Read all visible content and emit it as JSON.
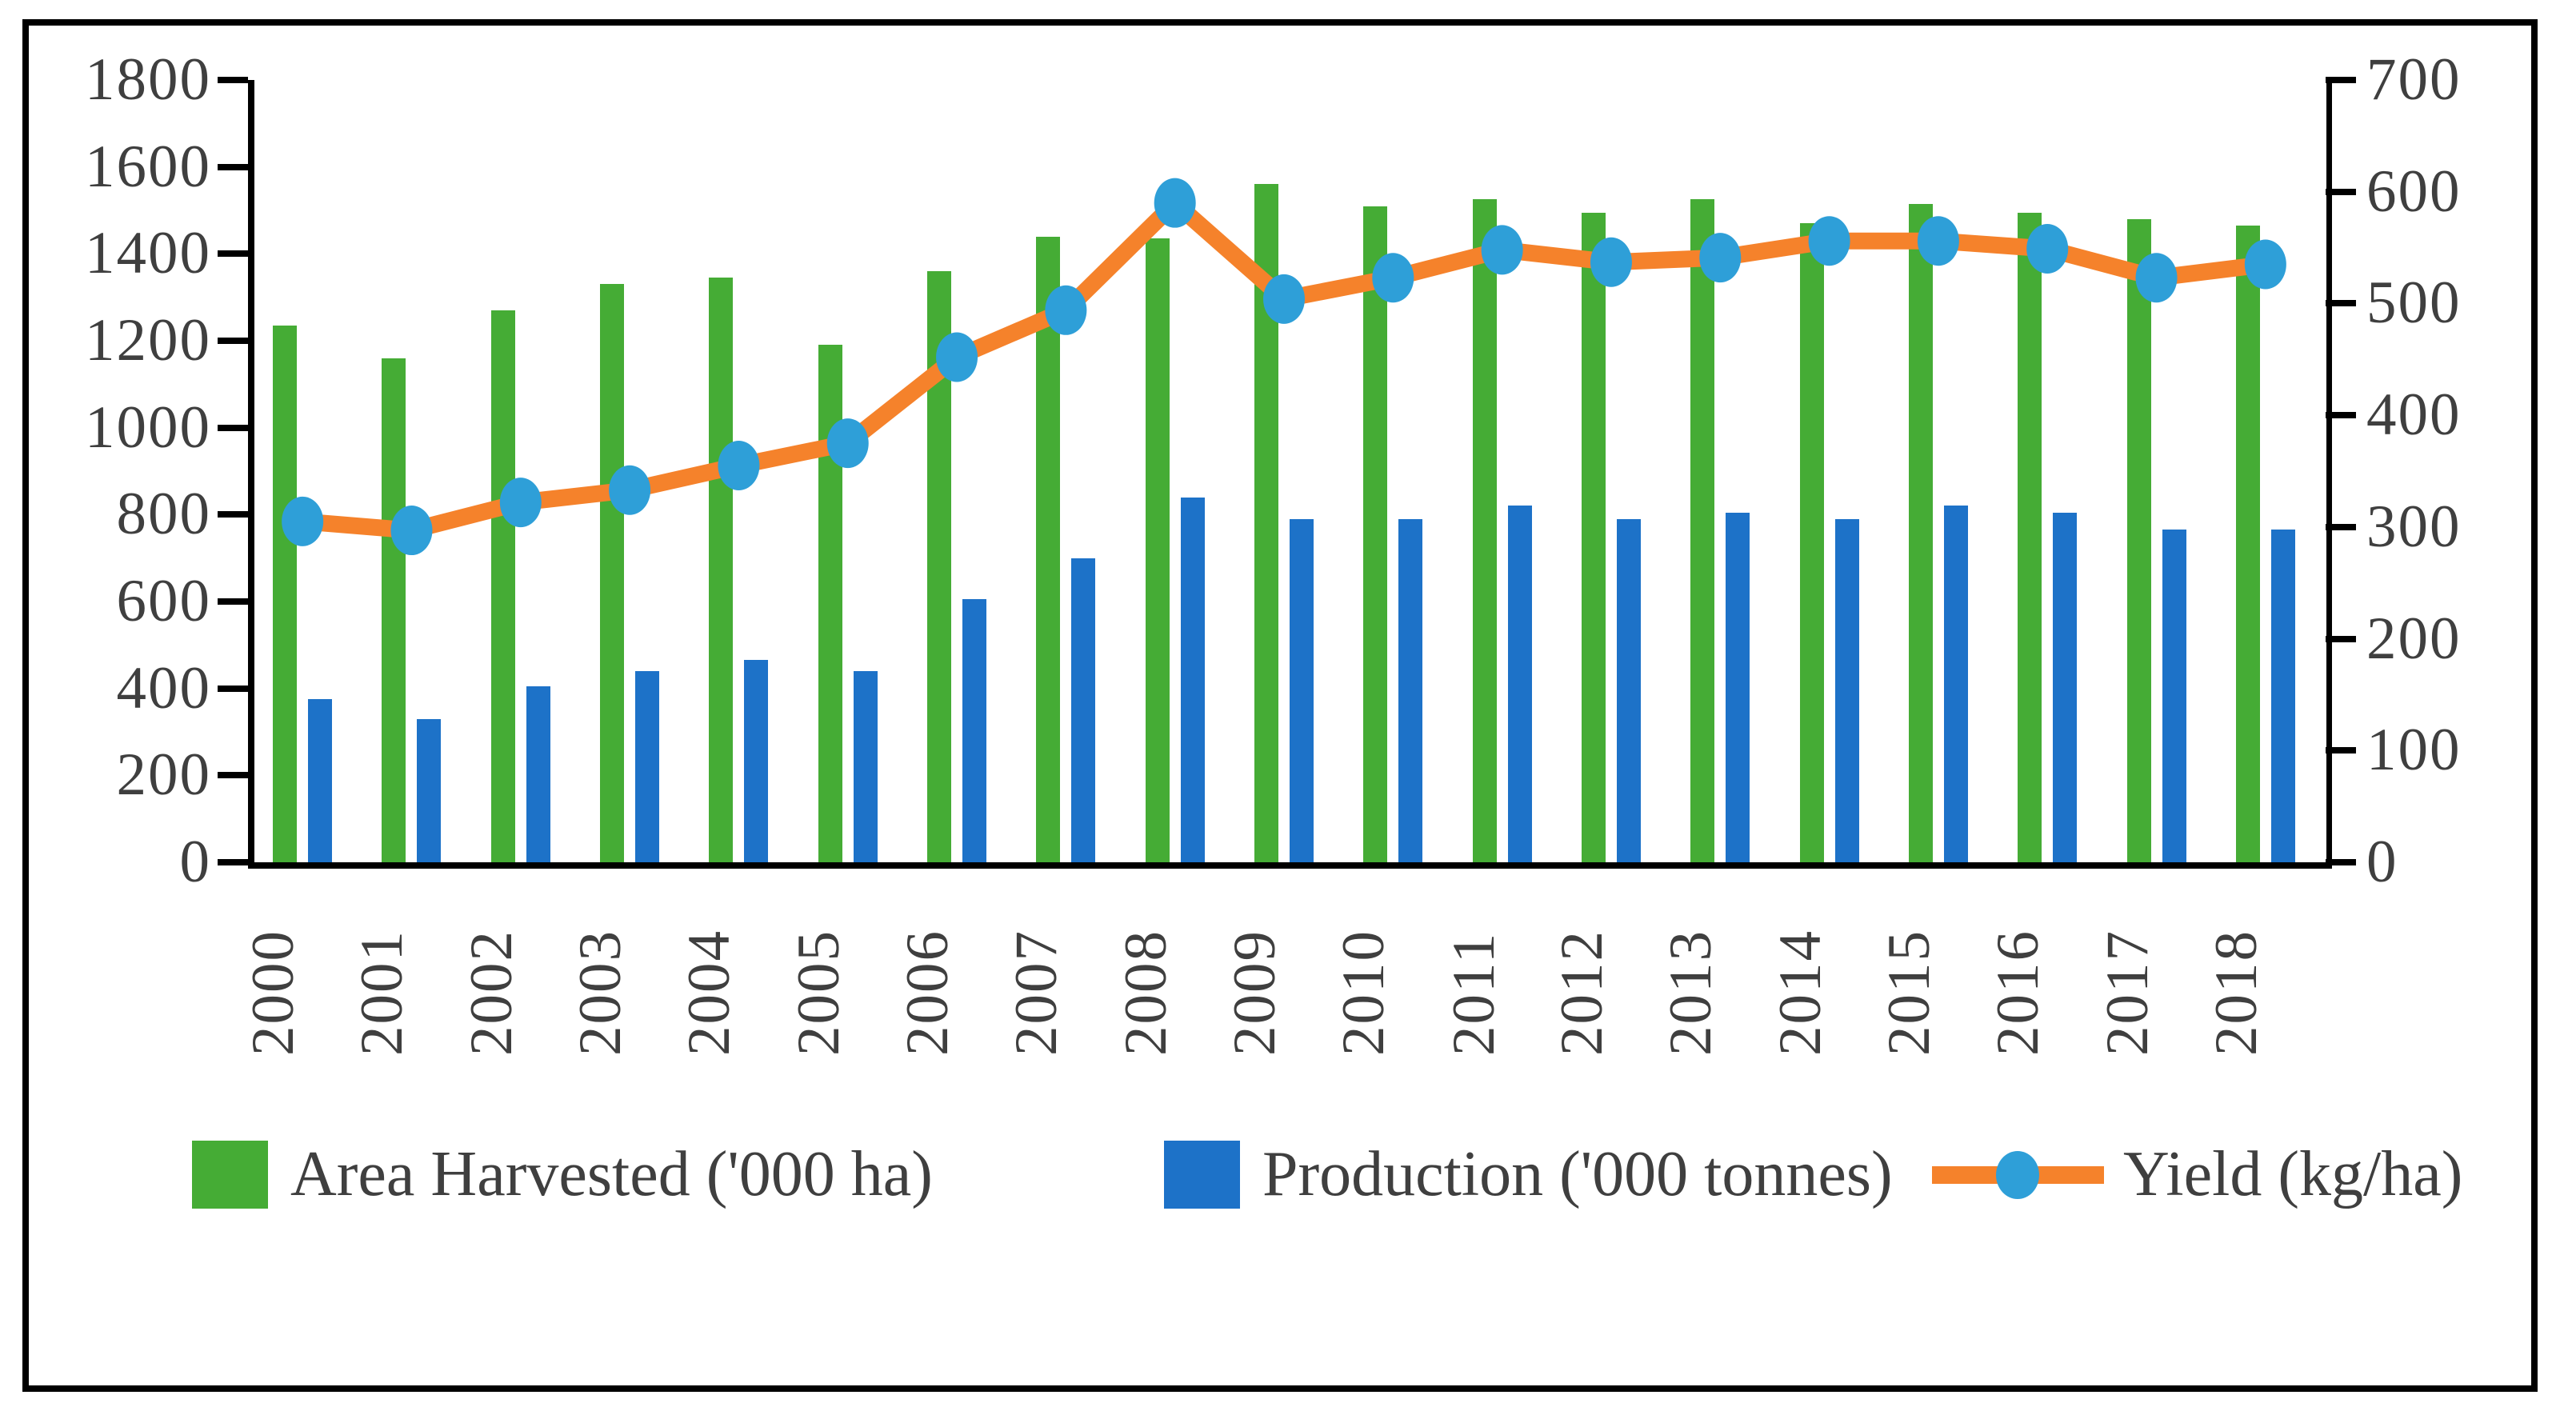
{
  "chart_data": {
    "type": "bar+line",
    "categories": [
      "2000",
      "2001",
      "2002",
      "2003",
      "2004",
      "2005",
      "2006",
      "2007",
      "2008",
      "2009",
      "2010",
      "2011",
      "2012",
      "2013",
      "2014",
      "2015",
      "2016",
      "2017",
      "2018"
    ],
    "series": [
      {
        "name": "Area Harvested ('000 ha)",
        "type": "bar",
        "axis": "left",
        "color": "#45AC35",
        "values": [
          1235,
          1160,
          1270,
          1330,
          1345,
          1190,
          1360,
          1440,
          1435,
          1560,
          1510,
          1525,
          1495,
          1525,
          1470,
          1515,
          1495,
          1480,
          1465
        ]
      },
      {
        "name": "Production ('000 tonnes)",
        "type": "bar",
        "axis": "left",
        "color": "#1D72C8",
        "values": [
          375,
          330,
          405,
          440,
          465,
          440,
          605,
          700,
          840,
          790,
          790,
          820,
          790,
          805,
          790,
          820,
          805,
          765,
          765
        ]
      },
      {
        "name": "Yield (kg/ha)",
        "type": "line",
        "axis": "right",
        "color": "#F5822B",
        "marker_color": "#2E9FD8",
        "values": [
          305,
          297,
          322,
          333,
          355,
          375,
          452,
          494,
          590,
          504,
          523,
          548,
          537,
          541,
          556,
          556,
          549,
          523,
          535
        ]
      }
    ],
    "left_axis": {
      "min": 0,
      "max": 1800,
      "step": 200,
      "ticks": [
        "0",
        "200",
        "400",
        "600",
        "800",
        "1000",
        "1200",
        "1400",
        "1600",
        "1800"
      ]
    },
    "right_axis": {
      "min": 0,
      "max": 700,
      "step": 100,
      "ticks": [
        "0",
        "100",
        "200",
        "300",
        "400",
        "500",
        "600",
        "700"
      ]
    },
    "grid": false,
    "legend_position": "bottom"
  },
  "style": {
    "axis_color": "#000000",
    "text_color": "#3f3f3f",
    "background": "#ffffff"
  }
}
